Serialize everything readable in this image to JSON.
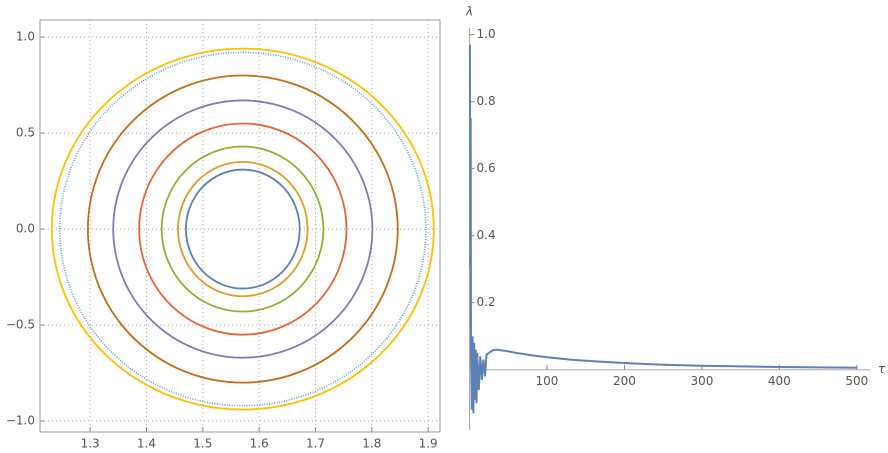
{
  "chart_data": [
    {
      "type": "orbits",
      "xlim": [
        1.211,
        1.921
      ],
      "ylim": [
        -1.057,
        1.089
      ],
      "xticks": [
        1.3,
        1.4,
        1.5,
        1.6,
        1.7,
        1.8,
        1.9
      ],
      "yticks": [
        {
          "value": -1,
          "label": "−1.0"
        },
        {
          "value": -0.5,
          "label": "−0.5"
        },
        {
          "value": 0,
          "label": "0.0"
        },
        0.5,
        {
          "value": 1,
          "label": "1.0"
        }
      ],
      "grid": true,
      "series": [
        {
          "color": "#5e81b5",
          "x": [
            1.47,
            1.672
          ],
          "y": [
            -0.31,
            0.31
          ]
        },
        {
          "color": "#e19c24",
          "x": [
            1.456,
            1.686
          ],
          "y": [
            -0.35,
            0.35
          ]
        },
        {
          "color": "#8fb032",
          "x": [
            1.427,
            1.714
          ],
          "y": [
            -0.43,
            0.43
          ]
        },
        {
          "color": "#eb6235",
          "x": [
            1.387,
            1.755
          ],
          "y": [
            -0.55,
            0.55
          ]
        },
        {
          "color": "#8778b3",
          "x": [
            1.341,
            1.801
          ],
          "y": [
            -0.67,
            0.67
          ]
        },
        {
          "color": "#c56e1a",
          "x": [
            1.296,
            1.846
          ],
          "y": [
            -0.8,
            0.8
          ]
        },
        {
          "color": "#5d9ec7",
          "x": [
            1.246,
            1.896
          ],
          "y": [
            -0.92,
            0.92
          ],
          "style": "dotted"
        },
        {
          "color": "#ffbf00",
          "x": [
            1.232,
            1.91
          ],
          "y": [
            -0.94,
            0.94
          ]
        }
      ]
    },
    {
      "type": "line",
      "xlabel": "τ",
      "ylabel": "λ",
      "xlim": [
        0,
        517
      ],
      "ylim": [
        -0.18,
        1.02
      ],
      "xticks": [
        100,
        200,
        300,
        400,
        500
      ],
      "yticks": [
        0.2,
        0.4,
        0.6,
        0.8,
        {
          "value": 1,
          "label": "1.0"
        }
      ],
      "color": "#5e81b5",
      "x": [
        0.5,
        1,
        1.5,
        2,
        3,
        4,
        5,
        6,
        7,
        8,
        9,
        10,
        12,
        14,
        16,
        18,
        20,
        22,
        25,
        28,
        30,
        35,
        40,
        50,
        60,
        80,
        100,
        130,
        160,
        200,
        250,
        300,
        350,
        400,
        450,
        500
      ],
      "values": [
        0.97,
        0.3,
        0.75,
        0.05,
        -0.12,
        0.1,
        -0.13,
        0.08,
        -0.09,
        0.06,
        -0.1,
        0.05,
        -0.06,
        0.04,
        -0.03,
        0.03,
        -0.02,
        0.045,
        0.05,
        0.055,
        0.058,
        0.06,
        0.058,
        0.055,
        0.05,
        0.043,
        0.037,
        0.03,
        0.025,
        0.02,
        0.015,
        0.012,
        0.01,
        0.008,
        0.007,
        0.006
      ]
    }
  ]
}
